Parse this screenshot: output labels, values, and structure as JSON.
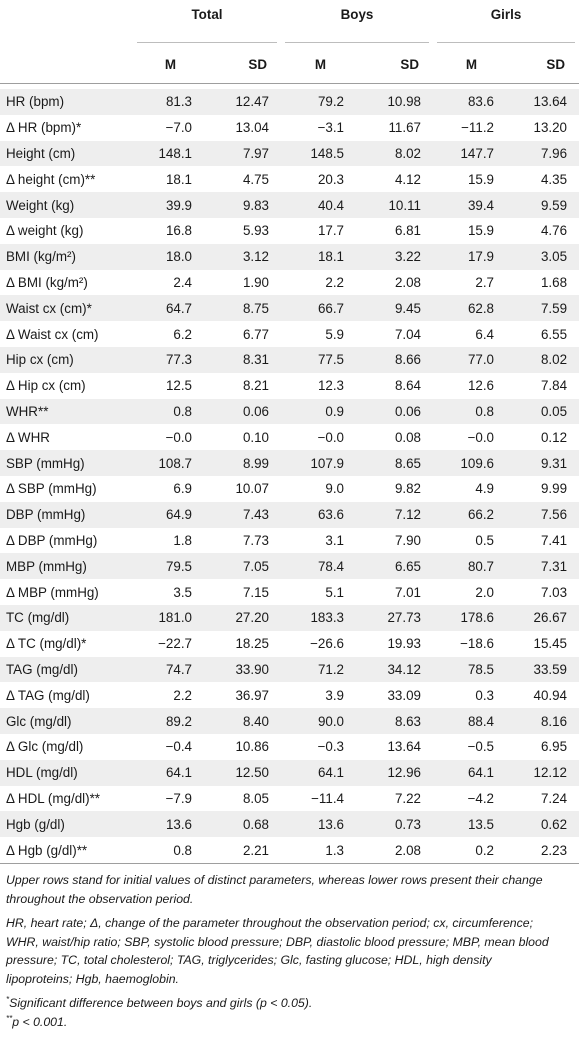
{
  "header": {
    "groups": [
      "Total",
      "Boys",
      "Girls"
    ],
    "sub": [
      "M",
      "SD",
      "M",
      "SD",
      "M",
      "SD"
    ]
  },
  "rows": [
    [
      "HR (bpm)",
      "81.3",
      "12.47",
      "79.2",
      "10.98",
      "83.6",
      "13.64"
    ],
    [
      "Δ HR (bpm)*",
      "−7.0",
      "13.04",
      "−3.1",
      "11.67",
      "−11.2",
      "13.20"
    ],
    [
      "Height (cm)",
      "148.1",
      "7.97",
      "148.5",
      "8.02",
      "147.7",
      "7.96"
    ],
    [
      "Δ height (cm)**",
      "18.1",
      "4.75",
      "20.3",
      "4.12",
      "15.9",
      "4.35"
    ],
    [
      "Weight (kg)",
      "39.9",
      "9.83",
      "40.4",
      "10.11",
      "39.4",
      "9.59"
    ],
    [
      "Δ weight (kg)",
      "16.8",
      "5.93",
      "17.7",
      "6.81",
      "15.9",
      "4.76"
    ],
    [
      "BMI (kg/m²)",
      "18.0",
      "3.12",
      "18.1",
      "3.22",
      "17.9",
      "3.05"
    ],
    [
      "Δ BMI (kg/m²)",
      "2.4",
      "1.90",
      "2.2",
      "2.08",
      "2.7",
      "1.68"
    ],
    [
      "Waist cx (cm)*",
      "64.7",
      "8.75",
      "66.7",
      "9.45",
      "62.8",
      "7.59"
    ],
    [
      "Δ Waist cx (cm)",
      "6.2",
      "6.77",
      "5.9",
      "7.04",
      "6.4",
      "6.55"
    ],
    [
      "Hip cx (cm)",
      "77.3",
      "8.31",
      "77.5",
      "8.66",
      "77.0",
      "8.02"
    ],
    [
      "Δ Hip cx (cm)",
      "12.5",
      "8.21",
      "12.3",
      "8.64",
      "12.6",
      "7.84"
    ],
    [
      "WHR**",
      "0.8",
      "0.06",
      "0.9",
      "0.06",
      "0.8",
      "0.05"
    ],
    [
      "Δ WHR",
      "−0.0",
      "0.10",
      "−0.0",
      "0.08",
      "−0.0",
      "0.12"
    ],
    [
      "SBP (mmHg)",
      "108.7",
      "8.99",
      "107.9",
      "8.65",
      "109.6",
      "9.31"
    ],
    [
      "Δ SBP (mmHg)",
      "6.9",
      "10.07",
      "9.0",
      "9.82",
      "4.9",
      "9.99"
    ],
    [
      "DBP (mmHg)",
      "64.9",
      "7.43",
      "63.6",
      "7.12",
      "66.2",
      "7.56"
    ],
    [
      "Δ DBP (mmHg)",
      "1.8",
      "7.73",
      "3.1",
      "7.90",
      "0.5",
      "7.41"
    ],
    [
      "MBP (mmHg)",
      "79.5",
      "7.05",
      "78.4",
      "6.65",
      "80.7",
      "7.31"
    ],
    [
      "Δ MBP (mmHg)",
      "3.5",
      "7.15",
      "5.1",
      "7.01",
      "2.0",
      "7.03"
    ],
    [
      "TC (mg/dl)",
      "181.0",
      "27.20",
      "183.3",
      "27.73",
      "178.6",
      "26.67"
    ],
    [
      "Δ TC (mg/dl)*",
      "−22.7",
      "18.25",
      "−26.6",
      "19.93",
      "−18.6",
      "15.45"
    ],
    [
      "TAG (mg/dl)",
      "74.7",
      "33.90",
      "71.2",
      "34.12",
      "78.5",
      "33.59"
    ],
    [
      "Δ TAG (mg/dl)",
      "2.2",
      "36.97",
      "3.9",
      "33.09",
      "0.3",
      "40.94"
    ],
    [
      "Glc (mg/dl)",
      "89.2",
      "8.40",
      "90.0",
      "8.63",
      "88.4",
      "8.16"
    ],
    [
      "Δ Glc (mg/dl)",
      "−0.4",
      "10.86",
      "−0.3",
      "13.64",
      "−0.5",
      "6.95"
    ],
    [
      "HDL (mg/dl)",
      "64.1",
      "12.50",
      "64.1",
      "12.96",
      "64.1",
      "12.12"
    ],
    [
      "Δ HDL (mg/dl)**",
      "−7.9",
      "8.05",
      "−11.4",
      "7.22",
      "−4.2",
      "7.24"
    ],
    [
      "Hgb (g/dl)",
      "13.6",
      "0.68",
      "13.6",
      "0.73",
      "13.5",
      "0.62"
    ],
    [
      "Δ Hgb (g/dl)**",
      "0.8",
      "2.21",
      "1.3",
      "2.08",
      "0.2",
      "2.23"
    ]
  ],
  "notes": {
    "n1": "Upper rows stand for initial values of distinct parameters, whereas lower rows present their change throughout the observation period.",
    "n2": "HR, heart rate; Δ, change of the parameter throughout the observation period; cx, circumference; WHR, waist/hip ratio; SBP, systolic blood pressure; DBP, diastolic blood pressure; MBP, mean blood pressure; TC, total cholesterol; TAG, triglycerides; Glc, fasting glucose; HDL, high density lipoproteins; Hgb, haemoglobin.",
    "n3_mark": "*",
    "n3": "Significant difference between boys and girls (p < 0.05).",
    "n4_mark": "**",
    "n4": "p < 0.001."
  }
}
